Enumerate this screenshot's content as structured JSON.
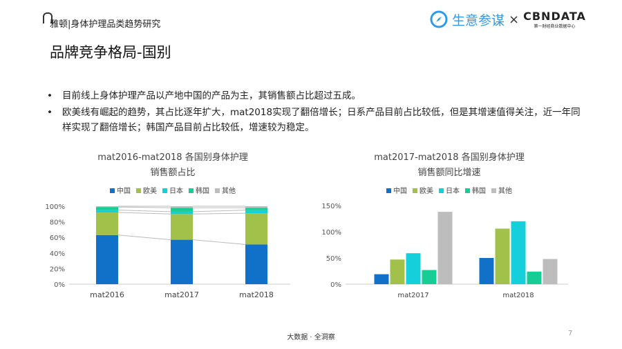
{
  "header": {
    "title": "雅顿|身体护理品类趋势研究",
    "brand": "生意参谋",
    "times": "×",
    "partner": "CBNDATA",
    "partner_sub": "第一财经商业数据中心"
  },
  "page_title": "品牌竞争格局-国别",
  "bullets": [
    "目前线上身体护理产品以产地中国的产品为主，其销售额占比超过五成。",
    "欧美线有崛起的趋势，其占比逐年扩大，mat2018实现了翻倍增长；日系产品目前占比较低，但是其增速值得关注，近一年同样实现了翻倍增长；韩国产品目前占比较低，增速较为稳定。"
  ],
  "footer": "大数据 · 全洞察",
  "page_number": "7",
  "colors": {
    "中国": "#1170c8",
    "欧美": "#a2c14a",
    "日本": "#15cfdb",
    "韩国": "#16cd96",
    "其他": "#bdbdbd"
  },
  "chart_data": [
    {
      "type": "bar",
      "stacked": true,
      "title": [
        "mat2016-mat2018 各国别身体护理",
        "销售额占比"
      ],
      "categories": [
        "mat2016",
        "mat2017",
        "mat2018"
      ],
      "series": [
        {
          "name": "中国",
          "values": [
            63,
            57,
            51
          ]
        },
        {
          "name": "欧美",
          "values": [
            29,
            33,
            40
          ]
        },
        {
          "name": "日本",
          "values": [
            3,
            3,
            4
          ]
        },
        {
          "name": "韩国",
          "values": [
            4,
            5,
            3
          ]
        },
        {
          "name": "其他",
          "values": [
            1,
            2,
            2
          ]
        }
      ],
      "ylim": [
        0,
        100
      ],
      "yticks": [
        "0%",
        "20%",
        "40%",
        "60%",
        "80%",
        "100%"
      ],
      "legend": "top"
    },
    {
      "type": "bar",
      "title": [
        "mat2017-mat2018 各国别身体护理",
        "销售额同比增速"
      ],
      "categories": [
        "mat2017",
        "mat2018"
      ],
      "series": [
        {
          "name": "中国",
          "values": [
            19,
            50
          ]
        },
        {
          "name": "欧美",
          "values": [
            47,
            106
          ]
        },
        {
          "name": "日本",
          "values": [
            59,
            120
          ]
        },
        {
          "name": "韩国",
          "values": [
            27,
            24
          ]
        },
        {
          "name": "其他",
          "values": [
            138,
            48
          ]
        }
      ],
      "ylim": [
        0,
        150
      ],
      "yticks": [
        "0%",
        "50%",
        "100%",
        "150%"
      ],
      "legend": "top"
    }
  ]
}
